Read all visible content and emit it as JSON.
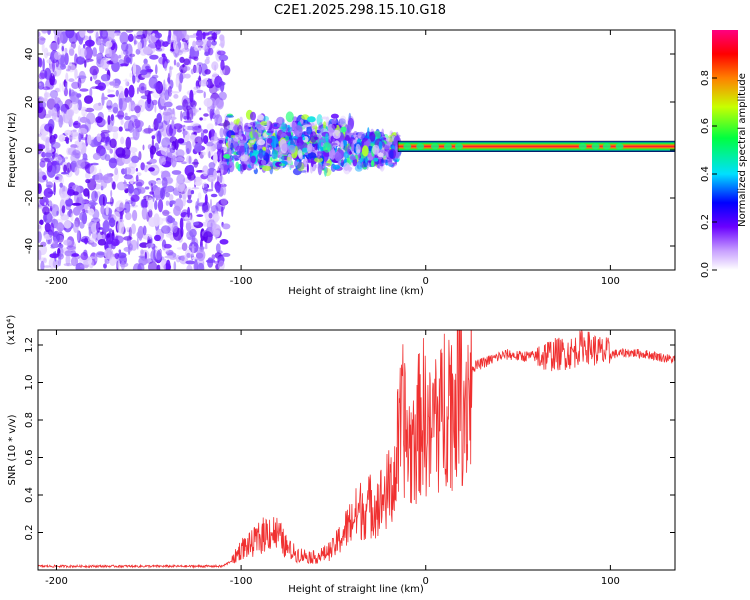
{
  "title": "C2E1.2025.298.15.10.G18",
  "chart_data": [
    {
      "type": "heatmap",
      "name": "spectrogram",
      "xlabel": "Height of straight line (km)",
      "ylabel": "Frequency (Hz)",
      "xlim": [
        -210,
        135
      ],
      "ylim": [
        -50,
        50
      ],
      "xticks": [
        -200,
        -100,
        0,
        100
      ],
      "yticks": [
        -40,
        -20,
        0,
        20,
        40
      ],
      "colorbar": {
        "label": "Normalized spectral amplitude",
        "range": [
          0,
          1
        ],
        "ticks": [
          "0.0",
          "0.2",
          "0.4",
          "0.6",
          "0.8"
        ]
      },
      "regions": [
        {
          "name": "noise",
          "x_range": [
            -210,
            -108
          ],
          "freq_range": [
            -50,
            50
          ],
          "amplitude": 0.15
        },
        {
          "name": "wide-band",
          "x_range": [
            -108,
            -40
          ],
          "freq_range": [
            -10,
            15
          ],
          "amplitude": 0.3
        },
        {
          "name": "narrowing",
          "x_range": [
            -40,
            -15
          ],
          "freq_range": [
            -8,
            8
          ],
          "amplitude": 0.35
        },
        {
          "name": "carrier-line",
          "x_range": [
            -15,
            135
          ],
          "center_hz": 1.5,
          "half_width_hz": 1.8,
          "amplitude": 0.9
        }
      ]
    },
    {
      "type": "line",
      "name": "snr",
      "xlabel": "Height of straight line (km)",
      "ylabel": "SNR (10 * v/v)",
      "scale_label": "(x10⁴)",
      "xlim": [
        -210,
        135
      ],
      "ylim": [
        0,
        1.28
      ],
      "xticks": [
        -200,
        -100,
        0,
        100
      ],
      "yticks": [
        0.2,
        0.4,
        0.6,
        0.8,
        1.0,
        1.2
      ],
      "ytick_labels": [
        "0.2",
        "0.4",
        "0.6",
        "0.8",
        "1.0",
        "1.2"
      ],
      "series": [
        {
          "name": "SNR",
          "color": "#f03030",
          "x": [
            -210,
            -150,
            -110,
            -105,
            -100,
            -95,
            -90,
            -85,
            -80,
            -75,
            -70,
            -65,
            -60,
            -55,
            -50,
            -45,
            -40,
            -35,
            -30,
            -25,
            -20,
            -17,
            -15,
            -12,
            -10,
            -8,
            -5,
            -2,
            0,
            3,
            5,
            8,
            10,
            13,
            15,
            18,
            20,
            23,
            25,
            30,
            35,
            40,
            45,
            50,
            60,
            70,
            80,
            85,
            90,
            95,
            100,
            110,
            120,
            130,
            135
          ],
          "y": [
            0.02,
            0.02,
            0.02,
            0.05,
            0.12,
            0.14,
            0.18,
            0.22,
            0.2,
            0.12,
            0.09,
            0.08,
            0.07,
            0.09,
            0.12,
            0.2,
            0.28,
            0.34,
            0.36,
            0.38,
            0.45,
            0.5,
            0.7,
            0.85,
            0.72,
            0.68,
            0.76,
            0.88,
            0.84,
            0.72,
            0.92,
            0.82,
            0.96,
            1.0,
            0.88,
            1.18,
            0.94,
            1.02,
            1.08,
            1.1,
            1.12,
            1.14,
            1.15,
            1.14,
            1.14,
            1.15,
            1.16,
            1.2,
            1.18,
            1.16,
            1.15,
            1.16,
            1.15,
            1.13,
            1.12
          ]
        }
      ]
    }
  ]
}
